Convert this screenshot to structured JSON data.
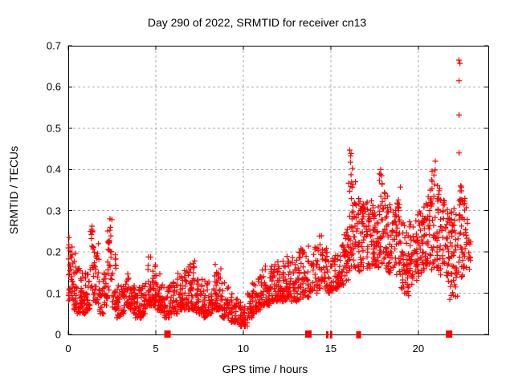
{
  "chart_data": {
    "type": "scatter",
    "title": "Day 290 of 2022, SRMTID for receiver cn13",
    "xlabel": "GPS time / hours",
    "ylabel": "SRMTID / TECUs",
    "xlim": [
      0,
      24
    ],
    "ylim": [
      0,
      0.7
    ],
    "xticks": [
      0,
      5,
      10,
      15,
      20
    ],
    "xtick_labels": [
      "0",
      "5",
      "10",
      "15",
      "20"
    ],
    "yticks": [
      0,
      0.1,
      0.2,
      0.3,
      0.4,
      0.5,
      0.6,
      0.7
    ],
    "ytick_labels": [
      "0",
      "0.1",
      "0.2",
      "0.3",
      "0.4",
      "0.5",
      "0.6",
      "0.7"
    ],
    "grid": true,
    "legend": "none",
    "marker": "plus",
    "marker_color": "#ff0000",
    "grid_color": "#aaaaaa",
    "axis_color": "#000000",
    "point_bands": [
      [
        0.0,
        0.08,
        0.22,
        30,
        1
      ],
      [
        0.25,
        0.06,
        0.2,
        26,
        0
      ],
      [
        0.5,
        0.05,
        0.17,
        26,
        0
      ],
      [
        0.75,
        0.05,
        0.15,
        24,
        0
      ],
      [
        1.0,
        0.06,
        0.16,
        22,
        0
      ],
      [
        1.25,
        0.08,
        0.265,
        26,
        1
      ],
      [
        1.5,
        0.07,
        0.22,
        20,
        1
      ],
      [
        1.75,
        0.05,
        0.14,
        22,
        0
      ],
      [
        2.0,
        0.05,
        0.15,
        22,
        0
      ],
      [
        2.25,
        0.1,
        0.285,
        28,
        1
      ],
      [
        2.5,
        0.06,
        0.2,
        22,
        0
      ],
      [
        2.75,
        0.04,
        0.12,
        22,
        0
      ],
      [
        3.0,
        0.05,
        0.13,
        22,
        0
      ],
      [
        3.25,
        0.07,
        0.16,
        24,
        0
      ],
      [
        3.5,
        0.06,
        0.14,
        22,
        0
      ],
      [
        3.75,
        0.04,
        0.12,
        24,
        0
      ],
      [
        4.0,
        0.04,
        0.12,
        24,
        0
      ],
      [
        4.25,
        0.05,
        0.14,
        22,
        0
      ],
      [
        4.5,
        0.07,
        0.19,
        26,
        0
      ],
      [
        4.75,
        0.07,
        0.19,
        26,
        0
      ],
      [
        5.0,
        0.06,
        0.15,
        22,
        0
      ],
      [
        5.25,
        0.05,
        0.13,
        22,
        0
      ],
      [
        5.5,
        0.04,
        0.12,
        20,
        0
      ],
      [
        5.75,
        0.04,
        0.12,
        20,
        0
      ],
      [
        6.0,
        0.05,
        0.13,
        22,
        0
      ],
      [
        6.25,
        0.06,
        0.15,
        24,
        0
      ],
      [
        6.5,
        0.06,
        0.16,
        24,
        0
      ],
      [
        6.75,
        0.06,
        0.17,
        24,
        0
      ],
      [
        7.0,
        0.06,
        0.18,
        24,
        0
      ],
      [
        7.25,
        0.05,
        0.15,
        22,
        0
      ],
      [
        7.5,
        0.05,
        0.14,
        22,
        0
      ],
      [
        7.75,
        0.04,
        0.13,
        22,
        0
      ],
      [
        8.0,
        0.05,
        0.14,
        22,
        0
      ],
      [
        8.25,
        0.06,
        0.17,
        24,
        0
      ],
      [
        8.5,
        0.06,
        0.16,
        24,
        0
      ],
      [
        8.75,
        0.04,
        0.13,
        22,
        0
      ],
      [
        9.0,
        0.04,
        0.12,
        22,
        0
      ],
      [
        9.25,
        0.03,
        0.1,
        22,
        0
      ],
      [
        9.5,
        0.03,
        0.09,
        20,
        0
      ],
      [
        9.75,
        0.02,
        0.08,
        20,
        0
      ],
      [
        10.0,
        0.02,
        0.07,
        18,
        0
      ],
      [
        10.25,
        0.04,
        0.1,
        20,
        0
      ],
      [
        10.5,
        0.05,
        0.13,
        22,
        0
      ],
      [
        10.75,
        0.06,
        0.15,
        22,
        0
      ],
      [
        11.0,
        0.07,
        0.16,
        24,
        0
      ],
      [
        11.25,
        0.07,
        0.17,
        24,
        0
      ],
      [
        11.5,
        0.08,
        0.17,
        24,
        0
      ],
      [
        11.75,
        0.08,
        0.18,
        24,
        0
      ],
      [
        12.0,
        0.08,
        0.18,
        24,
        0
      ],
      [
        12.25,
        0.08,
        0.19,
        24,
        0
      ],
      [
        12.5,
        0.09,
        0.2,
        24,
        0
      ],
      [
        12.75,
        0.08,
        0.19,
        24,
        0
      ],
      [
        13.0,
        0.08,
        0.2,
        24,
        0
      ],
      [
        13.25,
        0.09,
        0.21,
        24,
        0
      ],
      [
        13.5,
        0.09,
        0.22,
        22,
        0
      ],
      [
        13.75,
        0.1,
        0.18,
        12,
        0
      ],
      [
        14.0,
        0.1,
        0.22,
        16,
        1
      ],
      [
        14.25,
        0.11,
        0.24,
        20,
        1
      ],
      [
        14.5,
        0.11,
        0.23,
        20,
        1
      ],
      [
        14.75,
        0.1,
        0.2,
        20,
        0
      ],
      [
        15.0,
        0.1,
        0.19,
        20,
        0
      ],
      [
        15.25,
        0.11,
        0.2,
        22,
        0
      ],
      [
        15.5,
        0.12,
        0.22,
        24,
        0
      ],
      [
        15.75,
        0.13,
        0.26,
        26,
        1
      ],
      [
        16.0,
        0.15,
        0.45,
        30,
        1
      ],
      [
        16.25,
        0.16,
        0.38,
        26,
        1
      ],
      [
        16.5,
        0.15,
        0.33,
        26,
        1
      ],
      [
        16.75,
        0.16,
        0.32,
        26,
        1
      ],
      [
        17.0,
        0.16,
        0.33,
        26,
        1
      ],
      [
        17.25,
        0.17,
        0.34,
        26,
        1
      ],
      [
        17.5,
        0.16,
        0.32,
        26,
        1
      ],
      [
        17.75,
        0.17,
        0.4,
        28,
        1
      ],
      [
        18.0,
        0.16,
        0.36,
        26,
        1
      ],
      [
        18.25,
        0.15,
        0.32,
        26,
        1
      ],
      [
        18.5,
        0.14,
        0.31,
        24,
        1
      ],
      [
        18.75,
        0.14,
        0.36,
        24,
        1
      ],
      [
        19.0,
        0.1,
        0.28,
        24,
        1
      ],
      [
        19.25,
        0.09,
        0.25,
        24,
        1
      ],
      [
        19.5,
        0.12,
        0.28,
        24,
        1
      ],
      [
        19.75,
        0.13,
        0.31,
        24,
        1
      ],
      [
        20.0,
        0.14,
        0.3,
        24,
        1
      ],
      [
        20.25,
        0.15,
        0.33,
        26,
        1
      ],
      [
        20.5,
        0.16,
        0.35,
        26,
        1
      ],
      [
        20.75,
        0.15,
        0.42,
        26,
        1
      ],
      [
        21.0,
        0.15,
        0.37,
        26,
        1
      ],
      [
        21.25,
        0.14,
        0.33,
        24,
        1
      ],
      [
        21.5,
        0.12,
        0.31,
        24,
        1
      ],
      [
        21.75,
        0.08,
        0.3,
        24,
        1
      ],
      [
        22.0,
        0.09,
        0.31,
        24,
        1
      ],
      [
        22.25,
        0.13,
        0.37,
        26,
        1
      ],
      [
        22.5,
        0.14,
        0.33,
        26,
        1
      ],
      [
        22.75,
        0.15,
        0.28,
        14,
        1
      ]
    ],
    "outlier_points": [
      [
        0.05,
        0.235
      ],
      [
        16.08,
        0.447
      ],
      [
        16.13,
        0.433
      ],
      [
        17.85,
        0.4
      ],
      [
        17.9,
        0.385
      ],
      [
        20.97,
        0.42
      ],
      [
        21.8,
        0.085
      ],
      [
        22.0,
        0.095
      ],
      [
        22.32,
        0.665
      ],
      [
        22.38,
        0.657
      ],
      [
        22.33,
        0.615
      ],
      [
        22.33,
        0.532
      ],
      [
        22.33,
        0.44
      ]
    ],
    "axis_square_markers_x": [
      5.67,
      13.72,
      21.76
    ],
    "axis_bar_markers_x": [
      14.8,
      15.02,
      16.52,
      16.66
    ],
    "rng_seed": 290
  }
}
